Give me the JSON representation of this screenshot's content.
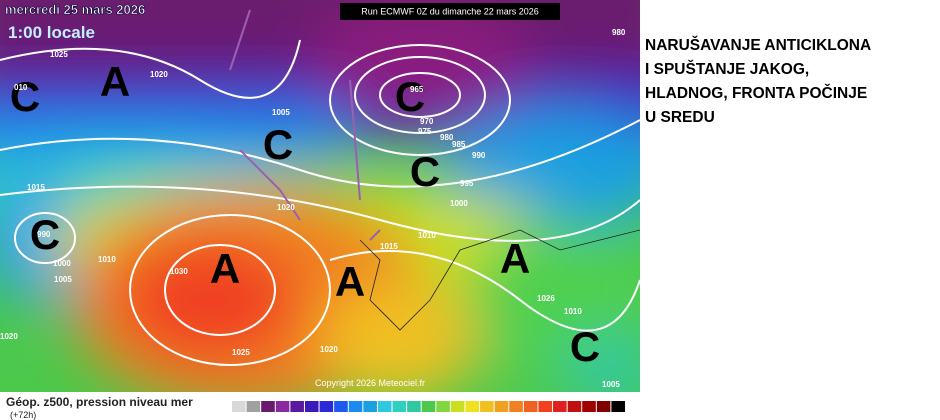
{
  "header": {
    "date": "mercredi 25 mars 2026",
    "time": "1:00 locale",
    "run": "Run ECMWF 0Z du dimanche 22 mars 2026"
  },
  "headline": {
    "lines": [
      "NARUŠAVANJE ANTICIKLONA",
      "I SPUŠTANJE JAKOG,",
      "HLADNOG, FRONTA POČINJE",
      "U SREDU"
    ]
  },
  "map": {
    "centers": [
      "C",
      "A",
      "C",
      "C",
      "C",
      "C",
      "A",
      "A",
      "A",
      "C"
    ],
    "isobars": [
      "1025",
      "1020",
      "1005",
      "965",
      "970",
      "975",
      "980",
      "985",
      "990",
      "995",
      "1000",
      "1015",
      "990",
      "1010",
      "1000",
      "1005",
      "1020",
      "1010",
      "1015",
      "1030",
      "1025",
      "1020",
      "1026",
      "1010",
      "1005",
      "980",
      "010",
      "1020"
    ],
    "copyright": "Copyright 2026 Meteociel.fr"
  },
  "footer": {
    "caption": "Géop. z500, pression niveau mer",
    "step": "(+72h)"
  }
}
